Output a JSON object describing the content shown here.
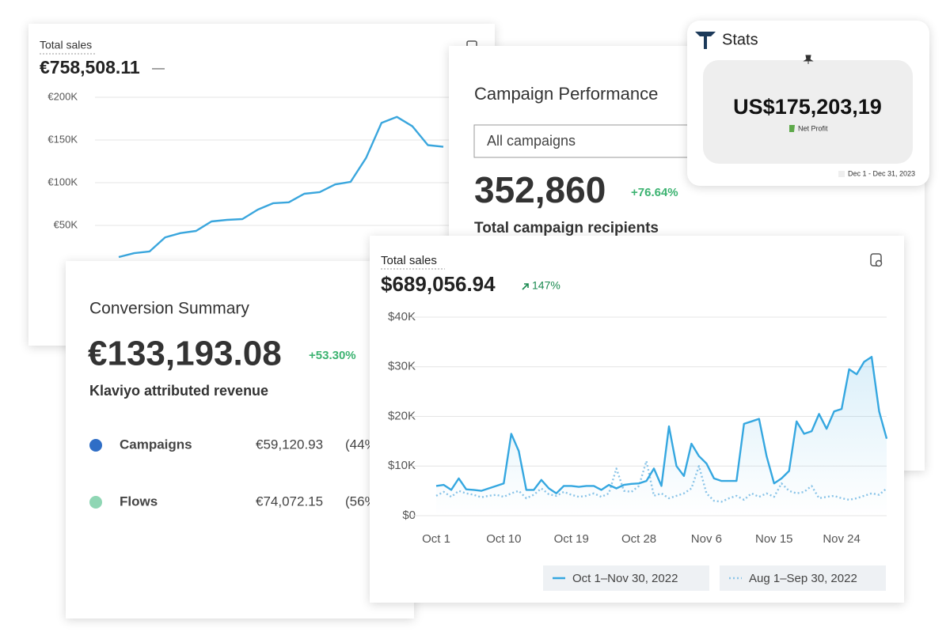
{
  "cards": [
    {
      "title": "Total sales",
      "value": "€758,508.11",
      "change": "—",
      "chart": {
        "type": "line",
        "color": "#3aa6dd",
        "grid": true,
        "ylim": [
          0,
          200000
        ],
        "yticks": [
          {
            "value": 50000,
            "label": "€50K"
          },
          {
            "value": 100000,
            "label": "€100K"
          },
          {
            "value": 150000,
            "label": "€150K"
          },
          {
            "value": 200000,
            "label": "€200K"
          }
        ],
        "values": [
          13000,
          17500,
          19500,
          36000,
          41000,
          43500,
          54600,
          56500,
          57400,
          68500,
          76000,
          77000,
          87000,
          89000,
          98000,
          101000,
          129000,
          170000,
          177000,
          166000,
          144000,
          142000
        ]
      }
    },
    {
      "title": "Campaign Performance",
      "dropdown": "All campaigns",
      "value": "352,860",
      "change": "+76.64%",
      "label": "Total campaign recipients"
    },
    {
      "title": "Stats",
      "value": "US$175,203,19",
      "value_label": "Net Profit",
      "date_range": "Dec 1 - Dec 31, 2023"
    },
    {
      "title": "Conversion Summary",
      "value": "€133,193.08",
      "change": "+53.30%",
      "label": "Klaviyo attributed revenue",
      "rows": [
        {
          "name": "Campaigns",
          "value": "€59,120.93",
          "share": "(44%)",
          "color": "#2f6ec6"
        },
        {
          "name": "Flows",
          "value": "€74,072.15",
          "share": "(56%)",
          "color": "#8fd6b4"
        }
      ]
    },
    {
      "title": "Total sales",
      "value": "$689,056.94",
      "change": "147%",
      "chart": {
        "type": "line",
        "grid": true,
        "ylim": [
          0,
          40000
        ],
        "yticks": [
          {
            "value": 0,
            "label": "$0"
          },
          {
            "value": 10000,
            "label": "$10K"
          },
          {
            "value": 20000,
            "label": "$20K"
          },
          {
            "value": 30000,
            "label": "$30K"
          },
          {
            "value": 40000,
            "label": "$40K"
          }
        ],
        "categories": [
          "Oct 1",
          null,
          null,
          null,
          null,
          null,
          null,
          null,
          null,
          "Oct 10",
          null,
          null,
          null,
          null,
          null,
          null,
          null,
          null,
          "Oct 19",
          null,
          null,
          null,
          null,
          null,
          null,
          null,
          null,
          "Oct 28",
          null,
          null,
          null,
          null,
          null,
          null,
          null,
          null,
          "Nov 6",
          null,
          null,
          null,
          null,
          null,
          null,
          null,
          null,
          "Nov 15",
          null,
          null,
          null,
          null,
          null,
          null,
          null,
          null,
          "Nov 24",
          null,
          null,
          null,
          null,
          null,
          null
        ],
        "series": [
          {
            "name": "Oct 1–Nov 30, 2022",
            "color": "#35a7e0",
            "line_style": "solid",
            "area": true,
            "values": [
              6000,
              6200,
              5200,
              7500,
              5300,
              5200,
              5000,
              5500,
              6000,
              6500,
              16500,
              13000,
              5200,
              5200,
              7200,
              5500,
              4500,
              6000,
              6000,
              5800,
              6000,
              6000,
              5200,
              6200,
              5500,
              6200,
              6400,
              6500,
              7000,
              9500,
              6000,
              18000,
              10000,
              8000,
              14500,
              12000,
              10500,
              7500,
              7000,
              7000,
              7000,
              18500,
              19000,
              19500,
              12000,
              6500,
              7500,
              9000,
              19000,
              16500,
              17000,
              20500,
              17500,
              21000,
              21500,
              29500,
              28500,
              31000,
              32000,
              21000,
              15500
            ]
          },
          {
            "name": "Aug 1–Sep 30, 2022",
            "color": "#8cc5e8",
            "line_style": "dotted",
            "area": false,
            "values": [
              4000,
              4800,
              3800,
              5000,
              4500,
              4200,
              3700,
              4000,
              4200,
              3800,
              4500,
              5000,
              3500,
              4200,
              5500,
              4300,
              4000,
              4800,
              4200,
              3800,
              4000,
              4500,
              3800,
              4500,
              9500,
              5000,
              4800,
              6000,
              11000,
              4000,
              4500,
              3500,
              4000,
              4500,
              5500,
              10000,
              4500,
              3000,
              2800,
              3500,
              4000,
              3200,
              4500,
              3800,
              4500,
              3800,
              6500,
              5000,
              4500,
              4800,
              6000,
              3500,
              3800,
              4000,
              3500,
              3200,
              3500,
              4000,
              4500,
              4200,
              5500
            ]
          }
        ]
      }
    }
  ]
}
